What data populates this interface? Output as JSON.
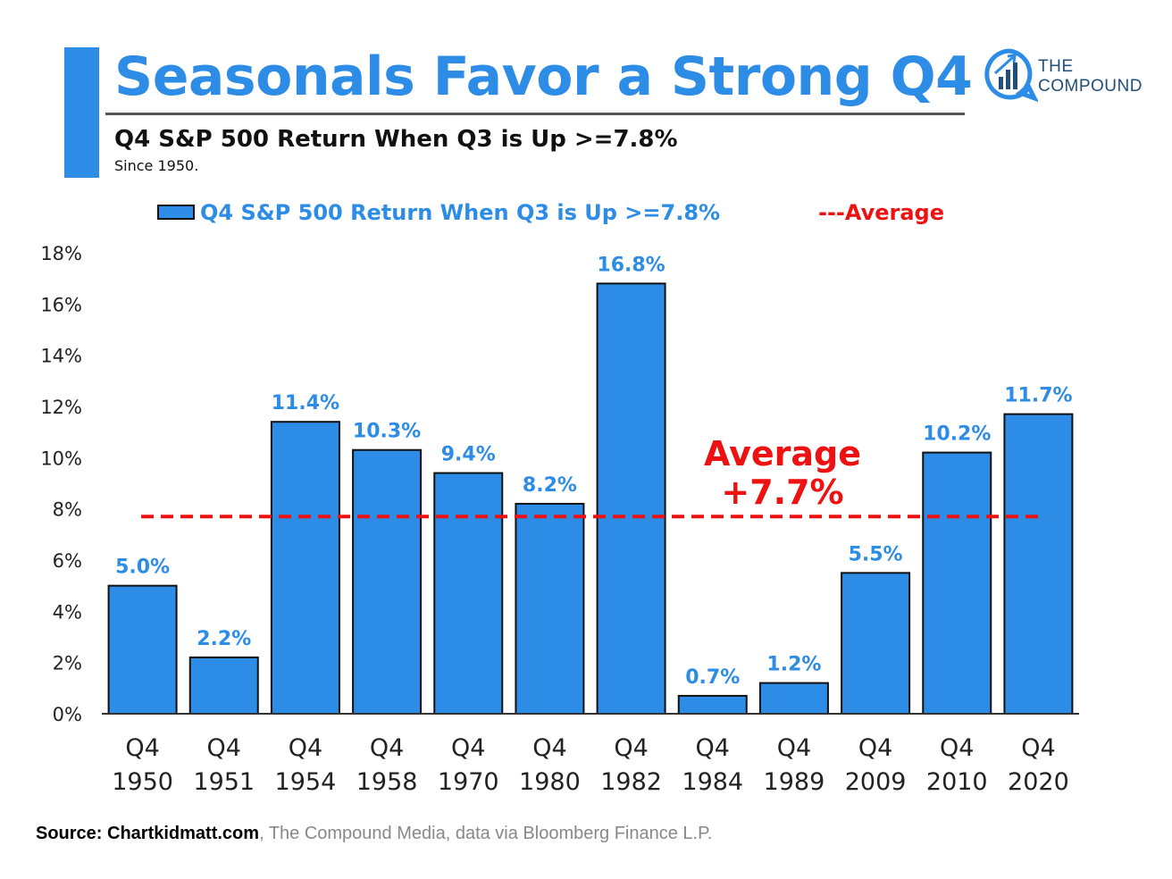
{
  "header": {
    "title": "Seasonals Favor a Strong Q4",
    "subtitle": "Q4 S&P 500 Return When Q3 is Up >=7.8%",
    "since": "Since 1950.",
    "accent_color": "#2c8ce6"
  },
  "logo": {
    "line1": "THE",
    "line2": "COMPOUND",
    "icon": "chart-bubble-icon"
  },
  "legend": {
    "series_label": "Q4 S&P 500 Return When Q3 is Up >=7.8%",
    "average_label": "---Average"
  },
  "chart_data": {
    "type": "bar",
    "title": "Q4 S&P 500 Return When Q3 is Up >=7.8%",
    "categories": [
      [
        "Q4",
        "1950"
      ],
      [
        "Q4",
        "1951"
      ],
      [
        "Q4",
        "1954"
      ],
      [
        "Q4",
        "1958"
      ],
      [
        "Q4",
        "1970"
      ],
      [
        "Q4",
        "1980"
      ],
      [
        "Q4",
        "1982"
      ],
      [
        "Q4",
        "1984"
      ],
      [
        "Q4",
        "1989"
      ],
      [
        "Q4",
        "2009"
      ],
      [
        "Q4",
        "2010"
      ],
      [
        "Q4",
        "2020"
      ]
    ],
    "values": [
      5.0,
      2.2,
      11.4,
      10.3,
      9.4,
      8.2,
      16.8,
      0.7,
      1.2,
      5.5,
      10.2,
      11.7
    ],
    "data_labels": [
      "5.0%",
      "2.2%",
      "11.4%",
      "10.3%",
      "9.4%",
      "8.2%",
      "16.8%",
      "0.7%",
      "1.2%",
      "5.5%",
      "10.2%",
      "11.7%"
    ],
    "y_ticks": [
      0,
      2,
      4,
      6,
      8,
      10,
      12,
      14,
      16,
      18
    ],
    "y_tick_labels": [
      "0%",
      "2%",
      "4%",
      "6%",
      "8%",
      "10%",
      "12%",
      "14%",
      "16%",
      "18%"
    ],
    "ylim": [
      0,
      18
    ],
    "average": 7.7,
    "average_annotation": [
      "Average",
      "+7.7%"
    ],
    "bar_color": "#2c8ce6",
    "average_color": "#ee1111",
    "label_color": "#2c8ce6",
    "grid": false,
    "legend_position": "top"
  },
  "footer": {
    "source_bold": "Source: Chartkidmatt.com",
    "source_rest": ", The Compound Media, data via Bloomberg Finance L.P."
  }
}
